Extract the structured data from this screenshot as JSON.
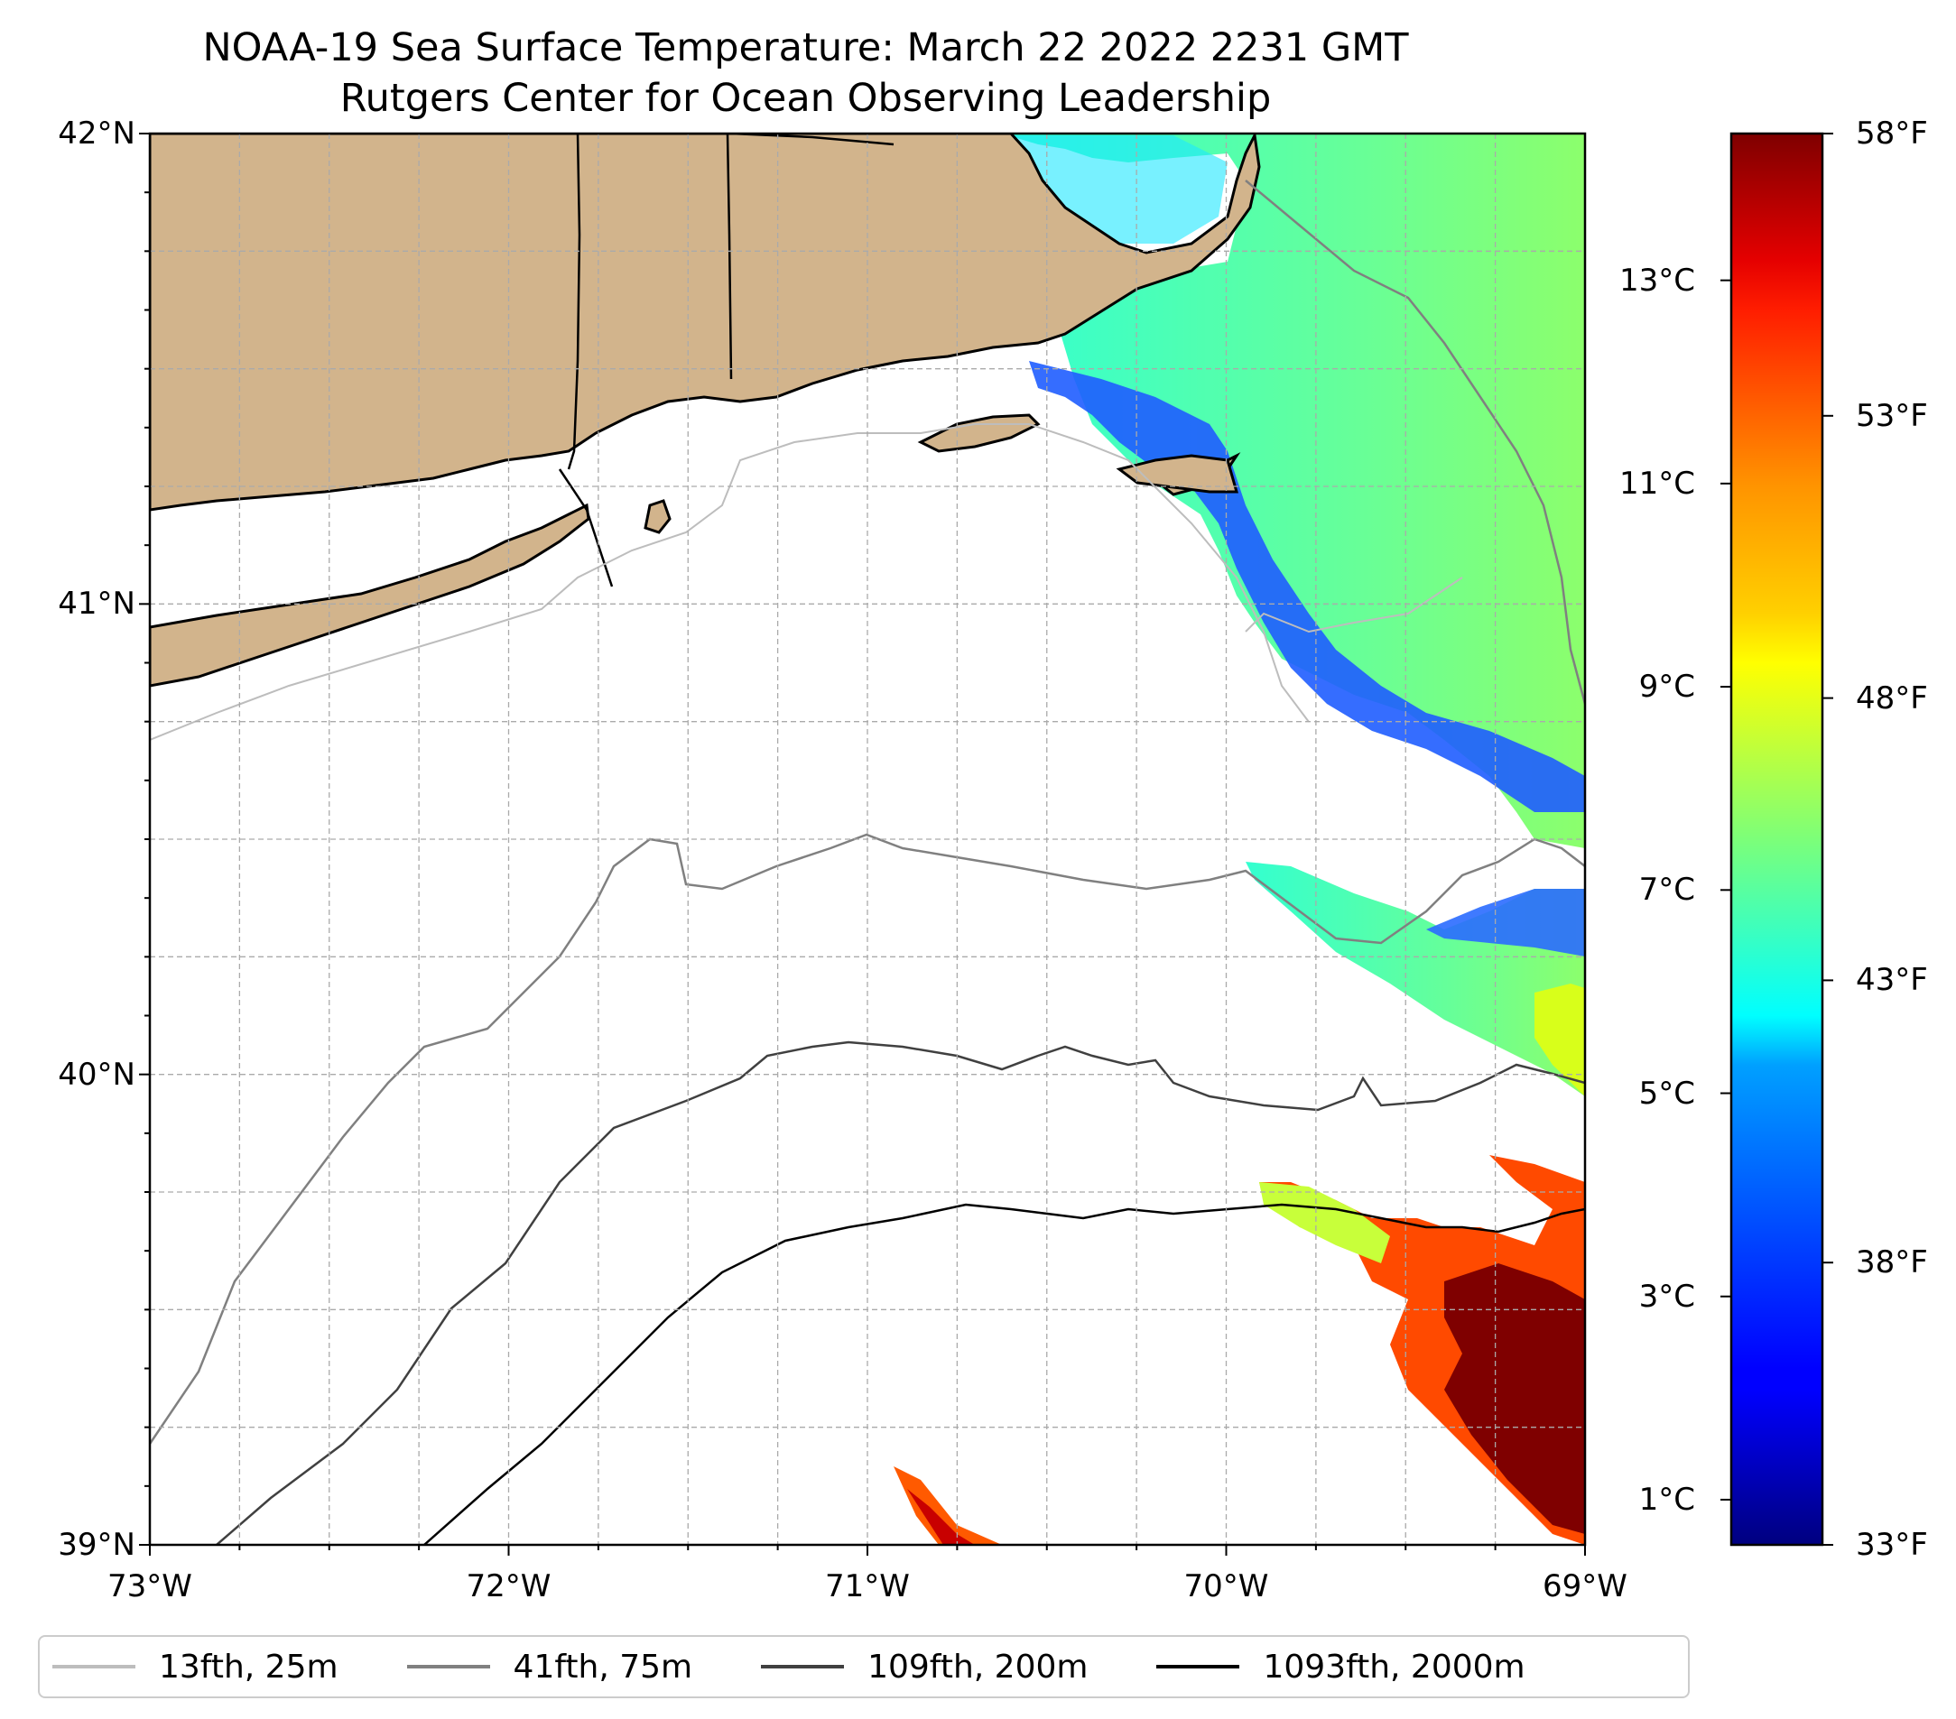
{
  "title": {
    "line1": "NOAA-19 Sea Surface Temperature: March 22 2022 2231 GMT",
    "line2": "Rutgers Center for Ocean Observing Leadership"
  },
  "map": {
    "extent": {
      "lon_min": -73,
      "lon_max": -69,
      "lat_min": 39,
      "lat_max": 42
    },
    "land_color": "#D2B48C",
    "gridlines": true,
    "lat_ticks": [
      {
        "value": 42,
        "label": "42°N"
      },
      {
        "value": 41,
        "label": "41°N"
      },
      {
        "value": 40,
        "label": "40°N"
      },
      {
        "value": 39,
        "label": "39°N"
      }
    ],
    "lon_ticks": [
      {
        "value": -73,
        "label": "73°W"
      },
      {
        "value": -72,
        "label": "72°W"
      },
      {
        "value": -71,
        "label": "71°W"
      },
      {
        "value": -70,
        "label": "70°W"
      },
      {
        "value": -69,
        "label": "69°W"
      }
    ]
  },
  "colorbar": {
    "colormap": "jet",
    "min_f": 33,
    "max_f": 58,
    "celsius_ticks": [
      {
        "value": 13,
        "label": "13°C"
      },
      {
        "value": 11,
        "label": "11°C"
      },
      {
        "value": 9,
        "label": "9°C"
      },
      {
        "value": 7,
        "label": "7°C"
      },
      {
        "value": 5,
        "label": "5°C"
      },
      {
        "value": 3,
        "label": "3°C"
      },
      {
        "value": 1,
        "label": "1°C"
      }
    ],
    "fahrenheit_ticks": [
      {
        "value": 58,
        "label": "58°F"
      },
      {
        "value": 53,
        "label": "53°F"
      },
      {
        "value": 48,
        "label": "48°F"
      },
      {
        "value": 43,
        "label": "43°F"
      },
      {
        "value": 38,
        "label": "38°F"
      },
      {
        "value": 33,
        "label": "33°F"
      }
    ]
  },
  "legend": {
    "placement": "bottom",
    "items": [
      {
        "label": "13fth, 25m",
        "color": "#bdbdbd"
      },
      {
        "label": "41fth, 75m",
        "color": "#808080"
      },
      {
        "label": "109fth, 200m",
        "color": "#404040"
      },
      {
        "label": "1093fth, 2000m",
        "color": "#000000"
      }
    ]
  }
}
